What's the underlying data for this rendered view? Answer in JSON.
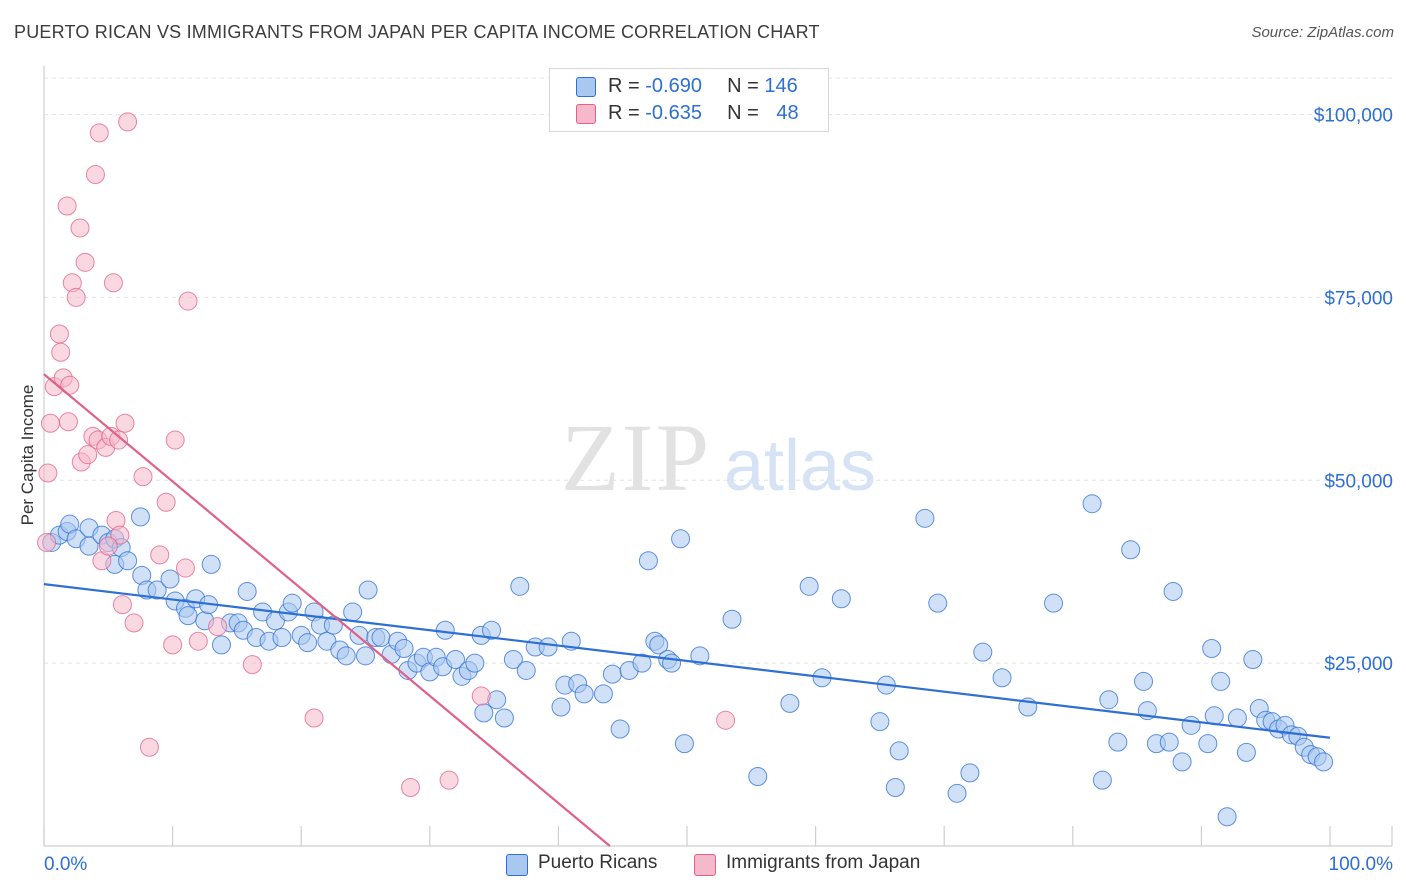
{
  "header": {
    "title": "PUERTO RICAN VS IMMIGRANTS FROM JAPAN PER CAPITA INCOME CORRELATION CHART",
    "source": "Source: ZipAtlas.com"
  },
  "watermark": {
    "zip": "ZIP",
    "atlas": "atlas"
  },
  "legend": {
    "rows": [
      {
        "r_label": "R =",
        "r_value": "-0.690",
        "n_label": "N =",
        "n_value": "146",
        "color": "#a9c8f0"
      },
      {
        "r_label": "R =",
        "r_value": "-0.635",
        "n_label": "N =",
        "n_value": "48",
        "color": "#f6b8cb"
      }
    ]
  },
  "bottom_legend": {
    "items": [
      {
        "label": "Puerto Ricans",
        "color": "#a9c8f0"
      },
      {
        "label": "Immigrants from Japan",
        "color": "#f6b8cb"
      }
    ]
  },
  "chart_data": {
    "type": "scatter",
    "title": "PUERTO RICAN VS IMMIGRANTS FROM JAPAN PER CAPITA INCOME CORRELATION CHART",
    "xlabel": "",
    "ylabel": "Per Capita Income",
    "xlim": [
      0,
      100
    ],
    "ylim": [
      0,
      105000
    ],
    "x_tick_labels": [
      "0.0%",
      "100.0%"
    ],
    "y_ticks": [
      25000,
      50000,
      75000,
      100000
    ],
    "y_tick_labels": [
      "$25,000",
      "$50,000",
      "$75,000",
      "$100,000"
    ],
    "grid": true,
    "legend_position": "top-center",
    "colors": {
      "series1": "#2e6fd4",
      "series1_fill": "#a9c8f0",
      "series2": "#e0608a",
      "series2_fill": "#f6b8cb",
      "axis_text": "#2e6fd4"
    },
    "series": [
      {
        "name": "Puerto Ricans",
        "trend": {
          "x": [
            0,
            100
          ],
          "y": [
            35800,
            14800
          ]
        },
        "points": [
          [
            0.6,
            41500
          ],
          [
            1.2,
            42500
          ],
          [
            1.8,
            43000
          ],
          [
            2.0,
            44000
          ],
          [
            2.5,
            42000
          ],
          [
            3.5,
            41000
          ],
          [
            3.5,
            43500
          ],
          [
            4.5,
            42500
          ],
          [
            5.0,
            41500
          ],
          [
            5.5,
            38500
          ],
          [
            5.5,
            42000
          ],
          [
            6.0,
            40800
          ],
          [
            6.5,
            39000
          ],
          [
            7.5,
            45000
          ],
          [
            7.6,
            37000
          ],
          [
            8.0,
            35000
          ],
          [
            8.8,
            35000
          ],
          [
            9.8,
            36500
          ],
          [
            10.2,
            33500
          ],
          [
            11.0,
            32500
          ],
          [
            11.2,
            31500
          ],
          [
            11.8,
            33800
          ],
          [
            12.5,
            30800
          ],
          [
            12.8,
            33000
          ],
          [
            13.0,
            38500
          ],
          [
            13.8,
            27500
          ],
          [
            14.5,
            30500
          ],
          [
            15.1,
            30500
          ],
          [
            15.5,
            29500
          ],
          [
            15.8,
            34800
          ],
          [
            16.5,
            28500
          ],
          [
            17.0,
            32000
          ],
          [
            17.5,
            28000
          ],
          [
            18.0,
            30800
          ],
          [
            18.5,
            28500
          ],
          [
            19.0,
            32000
          ],
          [
            19.3,
            33200
          ],
          [
            20.0,
            28800
          ],
          [
            20.5,
            27800
          ],
          [
            21.0,
            32000
          ],
          [
            21.5,
            30200
          ],
          [
            22.0,
            28000
          ],
          [
            22.5,
            30200
          ],
          [
            23.0,
            26800
          ],
          [
            23.5,
            26000
          ],
          [
            24.0,
            32000
          ],
          [
            24.5,
            28800
          ],
          [
            25.0,
            26000
          ],
          [
            25.2,
            35000
          ],
          [
            25.8,
            28500
          ],
          [
            26.2,
            28500
          ],
          [
            27.0,
            26200
          ],
          [
            27.5,
            28000
          ],
          [
            28.0,
            27000
          ],
          [
            28.3,
            24000
          ],
          [
            29.0,
            25000
          ],
          [
            29.5,
            25800
          ],
          [
            30.0,
            23800
          ],
          [
            30.5,
            25800
          ],
          [
            31.0,
            24500
          ],
          [
            31.2,
            29500
          ],
          [
            32.0,
            25500
          ],
          [
            32.5,
            23200
          ],
          [
            33.0,
            24000
          ],
          [
            33.5,
            25000
          ],
          [
            34.0,
            28800
          ],
          [
            34.2,
            18200
          ],
          [
            34.8,
            29500
          ],
          [
            35.2,
            20000
          ],
          [
            35.8,
            17500
          ],
          [
            36.5,
            25500
          ],
          [
            37.0,
            35500
          ],
          [
            37.5,
            24000
          ],
          [
            38.2,
            27200
          ],
          [
            39.2,
            27200
          ],
          [
            40.2,
            19000
          ],
          [
            40.5,
            22000
          ],
          [
            41.0,
            28000
          ],
          [
            41.5,
            22200
          ],
          [
            42.0,
            20800
          ],
          [
            43.5,
            20800
          ],
          [
            44.2,
            23500
          ],
          [
            44.8,
            16000
          ],
          [
            45.5,
            24000
          ],
          [
            46.5,
            25000
          ],
          [
            47.0,
            39000
          ],
          [
            47.5,
            28000
          ],
          [
            47.8,
            27500
          ],
          [
            48.5,
            25500
          ],
          [
            48.8,
            25000
          ],
          [
            49.5,
            42000
          ],
          [
            49.8,
            14000
          ],
          [
            51.0,
            26000
          ],
          [
            53.5,
            31000
          ],
          [
            55.5,
            9500
          ],
          [
            58.0,
            19500
          ],
          [
            59.5,
            35500
          ],
          [
            60.5,
            23000
          ],
          [
            62.0,
            33800
          ],
          [
            65.0,
            17000
          ],
          [
            65.5,
            22000
          ],
          [
            66.2,
            8000
          ],
          [
            66.5,
            13000
          ],
          [
            68.5,
            44800
          ],
          [
            69.5,
            33200
          ],
          [
            71.0,
            7200
          ],
          [
            72.0,
            10000
          ],
          [
            73.0,
            26500
          ],
          [
            74.5,
            23000
          ],
          [
            76.5,
            19000
          ],
          [
            78.5,
            33200
          ],
          [
            81.5,
            46800
          ],
          [
            82.3,
            9000
          ],
          [
            82.8,
            20000
          ],
          [
            83.5,
            14200
          ],
          [
            84.5,
            40500
          ],
          [
            85.5,
            22500
          ],
          [
            85.8,
            18500
          ],
          [
            86.5,
            14000
          ],
          [
            87.5,
            14200
          ],
          [
            87.8,
            34800
          ],
          [
            88.5,
            11500
          ],
          [
            89.2,
            16500
          ],
          [
            90.5,
            14000
          ],
          [
            90.8,
            27000
          ],
          [
            91.0,
            17800
          ],
          [
            91.5,
            22500
          ],
          [
            92.0,
            4000
          ],
          [
            92.8,
            17500
          ],
          [
            93.5,
            12800
          ],
          [
            94.0,
            25500
          ],
          [
            94.5,
            18800
          ],
          [
            95.0,
            17200
          ],
          [
            95.5,
            17000
          ],
          [
            96.0,
            16000
          ],
          [
            96.5,
            16500
          ],
          [
            97.0,
            15200
          ],
          [
            97.5,
            15000
          ],
          [
            98.0,
            13500
          ],
          [
            98.5,
            12500
          ],
          [
            99.0,
            12200
          ],
          [
            99.5,
            11500
          ]
        ]
      },
      {
        "name": "Immigrants from Japan",
        "trend": {
          "x": [
            0,
            44
          ],
          "y": [
            64500,
            0
          ]
        },
        "points": [
          [
            0.3,
            51000
          ],
          [
            0.5,
            57800
          ],
          [
            0.8,
            62800
          ],
          [
            1.2,
            70000
          ],
          [
            1.3,
            67500
          ],
          [
            1.5,
            64000
          ],
          [
            1.8,
            87500
          ],
          [
            1.9,
            58000
          ],
          [
            2.0,
            63000
          ],
          [
            2.2,
            77000
          ],
          [
            2.5,
            75000
          ],
          [
            2.8,
            84500
          ],
          [
            2.9,
            52500
          ],
          [
            3.2,
            79800
          ],
          [
            3.4,
            53500
          ],
          [
            3.8,
            56000
          ],
          [
            4.0,
            91800
          ],
          [
            4.2,
            55500
          ],
          [
            4.3,
            97500
          ],
          [
            4.5,
            39000
          ],
          [
            4.8,
            54500
          ],
          [
            5.2,
            56000
          ],
          [
            5.4,
            77000
          ],
          [
            5.6,
            44500
          ],
          [
            5.8,
            55500
          ],
          [
            5.9,
            42500
          ],
          [
            6.1,
            33000
          ],
          [
            6.3,
            57800
          ],
          [
            7.0,
            30500
          ],
          [
            7.7,
            50500
          ],
          [
            8.2,
            13500
          ],
          [
            9.0,
            39800
          ],
          [
            9.5,
            47000
          ],
          [
            10.0,
            27500
          ],
          [
            10.2,
            55500
          ],
          [
            11.0,
            38000
          ],
          [
            11.2,
            74500
          ],
          [
            12.0,
            28000
          ],
          [
            13.5,
            30000
          ],
          [
            16.2,
            24800
          ],
          [
            21.0,
            17500
          ],
          [
            28.5,
            8000
          ],
          [
            31.5,
            9000
          ],
          [
            34.0,
            20500
          ],
          [
            53.0,
            17200
          ],
          [
            6.5,
            99000
          ],
          [
            5.0,
            41000
          ],
          [
            0.2,
            41500
          ]
        ]
      }
    ]
  }
}
